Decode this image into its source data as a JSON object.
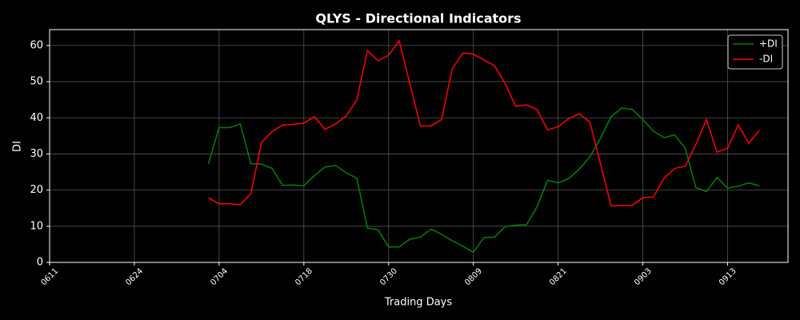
{
  "chart_data": {
    "type": "line",
    "title": "QLYS - Directional Indicators",
    "xlabel": "Trading Days",
    "ylabel": "DI",
    "x": [
      15,
      16,
      17,
      18,
      19,
      20,
      21,
      22,
      23,
      24,
      25,
      26,
      27,
      28,
      29,
      30,
      31,
      32,
      33,
      34,
      35,
      36,
      37,
      38,
      39,
      40,
      41,
      42,
      43,
      44,
      45,
      46,
      47,
      48,
      49,
      50,
      51,
      52,
      53,
      54,
      55,
      56,
      57,
      58,
      59,
      60,
      61,
      62,
      63,
      64,
      65,
      66,
      67
    ],
    "series": [
      {
        "name": "+DI",
        "color": "#008000",
        "values": [
          27.3,
          37.3,
          37.3,
          38.3,
          27.3,
          27.2,
          26,
          21.3,
          21.4,
          21.2,
          24,
          26.4,
          26.8,
          24.8,
          23.3,
          9.5,
          9,
          4.3,
          4.3,
          6.4,
          7,
          9.2,
          7.8,
          6,
          4.5,
          2.8,
          6.9,
          7,
          9.9,
          10.3,
          10.4,
          15.3,
          22.7,
          22,
          23.2,
          25.8,
          29.2,
          34.3,
          40.3,
          42.7,
          42.3,
          39.5,
          36.3,
          34.5,
          35.3,
          31.6,
          20.7,
          19.6,
          23.5,
          20.5,
          21.1,
          22,
          21.2
        ]
      },
      {
        "name": "-DI",
        "color": "#ff0000",
        "values": [
          17.8,
          16.2,
          16.2,
          16,
          19,
          33.2,
          36.2,
          38,
          38.2,
          38.5,
          40.3,
          36.8,
          38.3,
          40.5,
          45,
          58.6,
          55.8,
          57.3,
          61.3,
          49.5,
          37.7,
          37.8,
          39.5,
          53.5,
          57.9,
          57.6,
          56,
          54.4,
          49.5,
          43.2,
          43.6,
          42.3,
          36.7,
          37.5,
          39.8,
          41.1,
          38.8,
          27.3,
          15.6,
          15.7,
          15.8,
          17.9,
          18.1,
          23.3,
          26,
          26.6,
          32.6,
          39.5,
          30.5,
          31.6,
          38,
          33,
          36.5
        ]
      }
    ],
    "xlim": [
      0,
      69.7
    ],
    "xticks": [
      {
        "value": 0,
        "label": "0611"
      },
      {
        "value": 8,
        "label": "0624"
      },
      {
        "value": 16,
        "label": "0704"
      },
      {
        "value": 24,
        "label": "0718"
      },
      {
        "value": 32,
        "label": "0730"
      },
      {
        "value": 40,
        "label": "0809"
      },
      {
        "value": 48,
        "label": "0821"
      },
      {
        "value": 56,
        "label": "0903"
      },
      {
        "value": 64,
        "label": "0913"
      }
    ],
    "ylim": [
      0,
      64.4
    ],
    "yticks": [
      0,
      10,
      20,
      30,
      40,
      50,
      60
    ],
    "grid": true,
    "legend": "upper right"
  }
}
